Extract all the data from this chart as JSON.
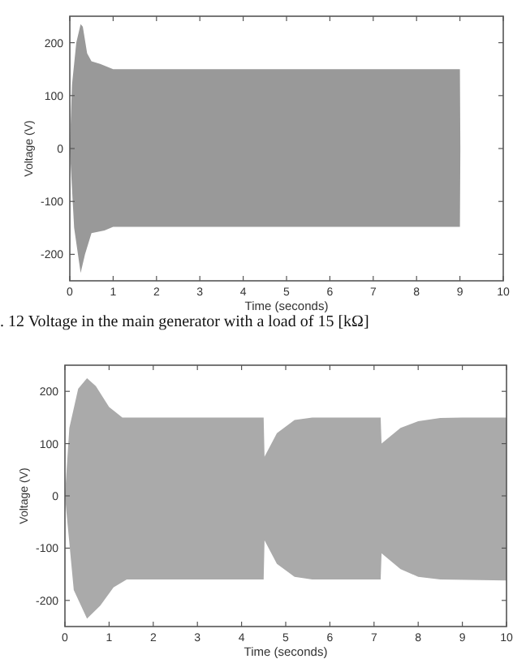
{
  "chart_data": [
    {
      "type": "area",
      "xlabel": "Time (seconds)",
      "ylabel": "Voltage (V)",
      "annotations": [
        ". 12 Voltage in the main generator with a load of 15 [kΩ]"
      ],
      "xlim": [
        0,
        10
      ],
      "ylim": [
        -250,
        250
      ],
      "xticks": [
        0,
        1,
        2,
        3,
        4,
        5,
        6,
        7,
        8,
        9,
        10
      ],
      "yticks": [
        -200,
        -100,
        0,
        100,
        200
      ],
      "grid": false,
      "series": [
        {
          "color": "#999999",
          "x": [
            0,
            0.05,
            0.15,
            0.25,
            0.3,
            0.4,
            0.5,
            0.7,
            0.85,
            1,
            9,
            9.01
          ],
          "values": [
            0,
            120,
            200,
            235,
            230,
            180,
            165,
            160,
            155,
            150,
            150,
            0
          ]
        },
        {
          "color": "#999999",
          "x": [
            0,
            0.1,
            0.25,
            0.35,
            0.5,
            0.8,
            1,
            9,
            9.01
          ],
          "values": [
            0,
            -150,
            -235,
            -200,
            -160,
            -155,
            -148,
            -148,
            0
          ]
        }
      ]
    },
    {
      "type": "area",
      "xlabel": "Time (seconds)",
      "ylabel": "Voltage (V)",
      "xlim": [
        0,
        10
      ],
      "ylim": [
        -250,
        250
      ],
      "xticks": [
        0,
        1,
        2,
        3,
        4,
        5,
        6,
        7,
        8,
        9,
        10
      ],
      "yticks": [
        -200,
        -100,
        0,
        100,
        200
      ],
      "grid": false,
      "series": [
        {
          "color": "#aaaaaa",
          "x": [
            0,
            0.1,
            0.3,
            0.5,
            0.7,
            1,
            1.3,
            4.5,
            4.52,
            4.8,
            5.2,
            5.6,
            7.15,
            7.17,
            7.6,
            8,
            8.5,
            9,
            10
          ],
          "values": [
            0,
            130,
            205,
            225,
            210,
            170,
            150,
            150,
            75,
            120,
            145,
            150,
            150,
            100,
            130,
            143,
            149,
            150,
            150
          ]
        },
        {
          "color": "#aaaaaa",
          "x": [
            0,
            0.2,
            0.5,
            0.8,
            1.1,
            1.4,
            4.5,
            4.52,
            4.8,
            5.2,
            5.6,
            7.15,
            7.17,
            7.6,
            8,
            8.5,
            10
          ],
          "values": [
            0,
            -180,
            -235,
            -210,
            -175,
            -160,
            -160,
            -85,
            -130,
            -155,
            -160,
            -160,
            -110,
            -140,
            -155,
            -160,
            -162
          ]
        }
      ]
    }
  ]
}
